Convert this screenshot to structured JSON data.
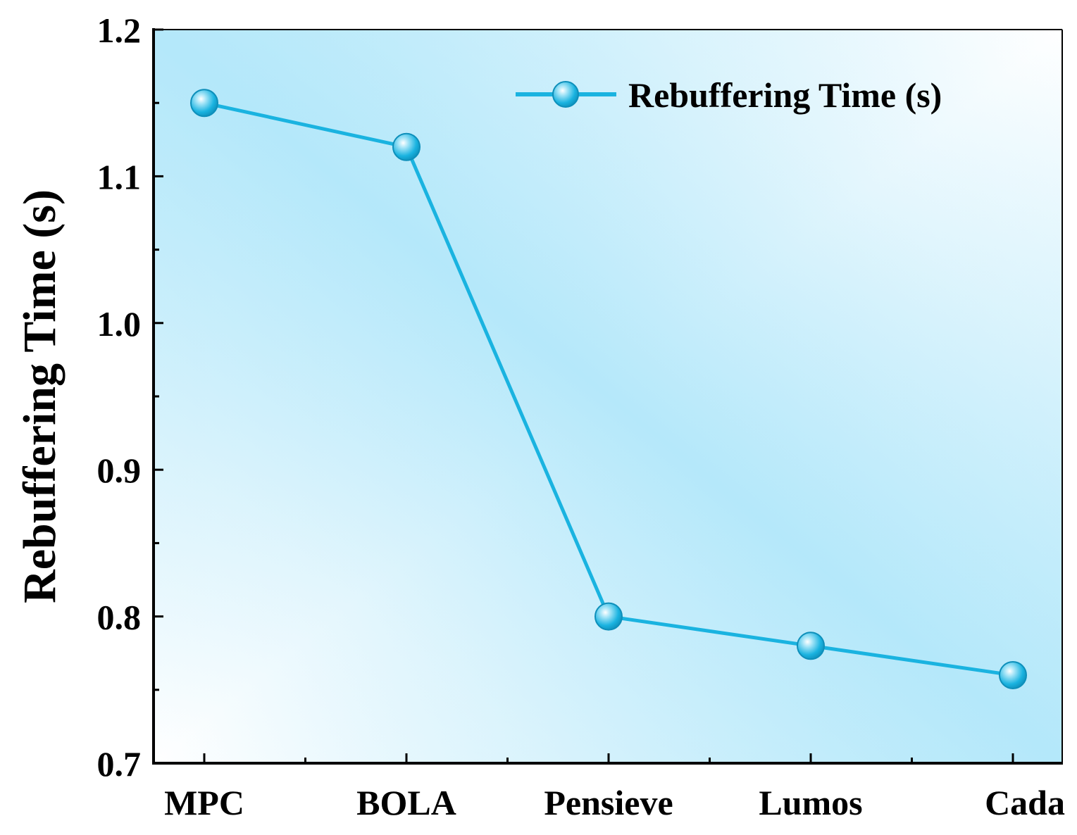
{
  "chart_data": {
    "type": "line",
    "title": "",
    "xlabel": "",
    "ylabel": "Rebuffering Time (s)",
    "categories": [
      "MPC",
      "BOLA",
      "Pensieve",
      "Lumos",
      "Cada"
    ],
    "series": [
      {
        "name": "Rebuffering Time (s)",
        "values": [
          1.15,
          1.12,
          0.8,
          0.78,
          0.76
        ],
        "color": "#1ab3e0"
      }
    ],
    "ylim": [
      0.7,
      1.2
    ],
    "yticks": [
      "0.7",
      "0.8",
      "0.9",
      "1.0",
      "1.1",
      "1.2"
    ],
    "ytick_values": [
      0.7,
      0.8,
      0.9,
      1.0,
      1.1,
      1.2
    ],
    "legend_position": "top-right",
    "grid": false,
    "background_colors": {
      "light": "#ffffff",
      "accent": "#b3e8fa"
    }
  }
}
